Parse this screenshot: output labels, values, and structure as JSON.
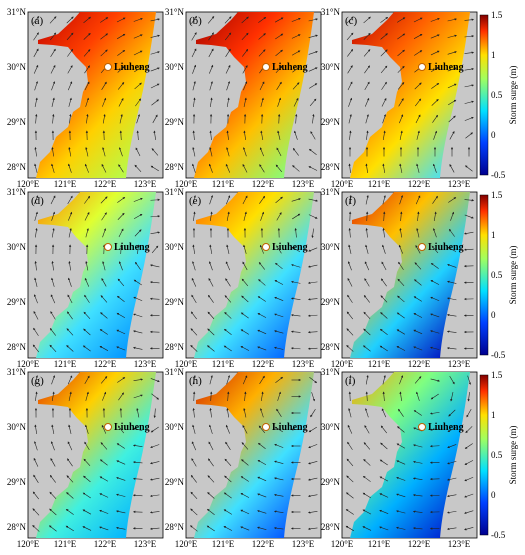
{
  "panels": [
    {
      "label": "(a)",
      "site": "Liuheng"
    },
    {
      "label": "(b)",
      "site": "Liuheng"
    },
    {
      "label": "(c)",
      "site": "Liuheng"
    },
    {
      "label": "(d)",
      "site": "Liuheng"
    },
    {
      "label": "(e)",
      "site": "Liuheng"
    },
    {
      "label": "(f)",
      "site": "Liuheng"
    },
    {
      "label": "(g)",
      "site": "Liuheng"
    },
    {
      "label": "(h)",
      "site": "Liuheng"
    },
    {
      "label": "(i)",
      "site": "Liuheng"
    }
  ],
  "lat_ticks": [
    "31°N",
    "30°N",
    "29°N",
    "28°N"
  ],
  "lon_ticks": [
    "120°E",
    "121°E",
    "122°E",
    "123°E"
  ],
  "colorbar": {
    "label": "Storm surge (m)",
    "ticks": [
      "1.5",
      "1",
      "0.5",
      "0",
      "-0.5"
    ]
  }
}
